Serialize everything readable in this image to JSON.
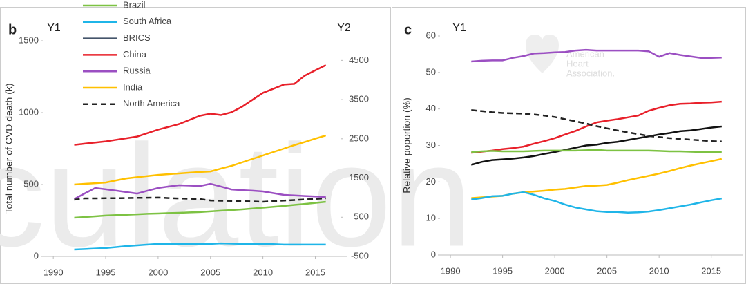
{
  "chart_data": [
    {
      "type": "line",
      "panel_label": "b",
      "y_axis_name": "Y1",
      "y2_axis_name": "Y2",
      "ylabel": "Total number of CVD death (k)",
      "watermark": "culation",
      "x": [
        1992,
        1993,
        1994,
        1995,
        1996,
        1997,
        1998,
        1999,
        2000,
        2001,
        2002,
        2003,
        2004,
        2005,
        2006,
        2007,
        2008,
        2009,
        2010,
        2011,
        2012,
        2013,
        2014,
        2015,
        2016
      ],
      "xlim": [
        1989,
        2018
      ],
      "xticks": [
        1990,
        1995,
        2000,
        2005,
        2010,
        2015
      ],
      "ylim": [
        0,
        1500
      ],
      "yticks": [
        0,
        500,
        1000,
        1500
      ],
      "y2lim": [
        -500,
        5000
      ],
      "y2ticks": [
        -500,
        500,
        1500,
        2500,
        3500,
        4500
      ],
      "series": [
        {
          "name": "Brazil",
          "color": "#7dc243",
          "values": [
            269,
            274,
            279,
            284,
            287,
            290,
            293,
            296,
            298,
            301,
            303,
            306,
            308,
            313,
            318,
            322,
            327,
            333,
            339,
            345,
            351,
            358,
            365,
            372,
            380
          ]
        },
        {
          "name": "South Africa",
          "color": "#1fb5e8",
          "values": [
            48,
            51,
            55,
            58,
            65,
            72,
            77,
            82,
            87,
            87,
            87,
            87,
            87,
            87,
            91,
            89,
            87,
            87,
            87,
            85,
            82,
            82,
            82,
            82,
            82
          ]
        },
        {
          "name": "BRICS",
          "color": "#44546a",
          "values": [
            null,
            null,
            null,
            null,
            null,
            null,
            null,
            null,
            null,
            null,
            null,
            null,
            null,
            null,
            null,
            null,
            null,
            null,
            null,
            null,
            null,
            null,
            null,
            null,
            null
          ]
        },
        {
          "name": "China",
          "color": "#e8202a",
          "axis": "y2",
          "values": [
            2345,
            2375,
            2405,
            2433,
            2474,
            2515,
            2557,
            2645,
            2733,
            2804,
            2875,
            2981,
            3087,
            3140,
            3105,
            3175,
            3317,
            3494,
            3670,
            3776,
            3882,
            3900,
            4112,
            4245,
            4377
          ]
        },
        {
          "name": "Russia",
          "color": "#9b4fc2",
          "values": [
            399,
            438,
            476,
            467,
            457,
            447,
            437,
            457,
            476,
            486,
            495,
            493,
            490,
            505,
            486,
            466,
            461,
            457,
            452,
            440,
            428,
            424,
            420,
            417,
            413
          ]
        },
        {
          "name": "India",
          "color": "#ffc000",
          "values": [
            500,
            505,
            509,
            514,
            529,
            543,
            551,
            559,
            567,
            572,
            577,
            582,
            587,
            591,
            611,
            630,
            654,
            678,
            702,
            726,
            750,
            774,
            796,
            819,
            841
          ]
        },
        {
          "name": "North America",
          "color": "#222222",
          "dashed": true,
          "values": [
            394,
            404,
            404,
            405,
            405,
            406,
            407,
            408,
            409,
            406,
            403,
            401,
            399,
            389,
            387,
            386,
            384,
            382,
            380,
            384,
            388,
            392,
            396,
            400,
            404
          ]
        }
      ]
    },
    {
      "type": "line",
      "panel_label": "c",
      "y_axis_name": "Y1",
      "ylabel": "Relative poportion (%)",
      "watermark_logo": [
        "American",
        "Heart",
        "Association."
      ],
      "x": [
        1992,
        1993,
        1994,
        1995,
        1996,
        1997,
        1998,
        1999,
        2000,
        2001,
        2002,
        2003,
        2004,
        2005,
        2006,
        2007,
        2008,
        2009,
        2010,
        2011,
        2012,
        2013,
        2014,
        2015,
        2016
      ],
      "xlim": [
        1989,
        2018
      ],
      "xticks": [
        1990,
        1995,
        2000,
        2005,
        2010,
        2015
      ],
      "ylim": [
        0,
        60
      ],
      "yticks": [
        0,
        10,
        20,
        30,
        40,
        50,
        60
      ],
      "series": [
        {
          "color": "#9b4fc2",
          "values": [
            53,
            53.2,
            53.3,
            53.3,
            54,
            54.5,
            55.2,
            55.3,
            55.5,
            55.6,
            56,
            56.2,
            56,
            56,
            56,
            56,
            56,
            55.8,
            54.3,
            55.3,
            54.8,
            54.4,
            54,
            54,
            54.1
          ]
        },
        {
          "color": "#e8202a",
          "values": [
            28,
            28.3,
            28.6,
            29,
            29.3,
            29.7,
            30.5,
            31.2,
            32,
            33,
            34,
            35.2,
            36.3,
            36.8,
            37.2,
            37.7,
            38.2,
            39.5,
            40.3,
            41,
            41.4,
            41.5,
            41.7,
            41.8,
            42
          ]
        },
        {
          "color": "#111111",
          "values": [
            24.7,
            25.5,
            26,
            26.2,
            26.4,
            26.7,
            27.1,
            27.7,
            28.2,
            28.8,
            29.4,
            30,
            30.2,
            30.7,
            31,
            31.5,
            32,
            32.5,
            33,
            33.4,
            33.9,
            34.1,
            34.5,
            34.9,
            35.2
          ]
        },
        {
          "color": "#222222",
          "dashed": true,
          "values": [
            39.7,
            39.4,
            39.1,
            38.9,
            38.8,
            38.7,
            38.5,
            38.2,
            37.8,
            37.2,
            36.6,
            36,
            35.3,
            34.7,
            34.1,
            33.6,
            33.1,
            32.6,
            32.3,
            32,
            31.8,
            31.6,
            31.4,
            31.2,
            31.1
          ]
        },
        {
          "color": "#7dc243",
          "values": [
            28.2,
            28.4,
            28.5,
            28.4,
            28.4,
            28.4,
            28.5,
            28.6,
            28.6,
            28.6,
            28.6,
            28.7,
            28.8,
            28.6,
            28.6,
            28.6,
            28.6,
            28.6,
            28.5,
            28.4,
            28.4,
            28.3,
            28.2,
            28.2,
            28.2
          ]
        },
        {
          "color": "#ffc000",
          "values": [
            15.6,
            15.8,
            16,
            16.2,
            16.8,
            17.2,
            17.4,
            17.6,
            17.9,
            18.1,
            18.5,
            18.9,
            19,
            19.2,
            19.8,
            20.5,
            21.1,
            21.7,
            22.3,
            23,
            23.8,
            24.5,
            25.1,
            25.7,
            26.3
          ]
        },
        {
          "color": "#1fb5e8",
          "values": [
            15.2,
            15.6,
            16.1,
            16.2,
            16.8,
            17.2,
            16.5,
            15.5,
            14.8,
            13.8,
            13,
            12.5,
            12,
            11.8,
            11.8,
            11.6,
            11.7,
            11.9,
            12.3,
            12.8,
            13.3,
            13.8,
            14.4,
            15,
            15.5
          ]
        }
      ]
    }
  ]
}
